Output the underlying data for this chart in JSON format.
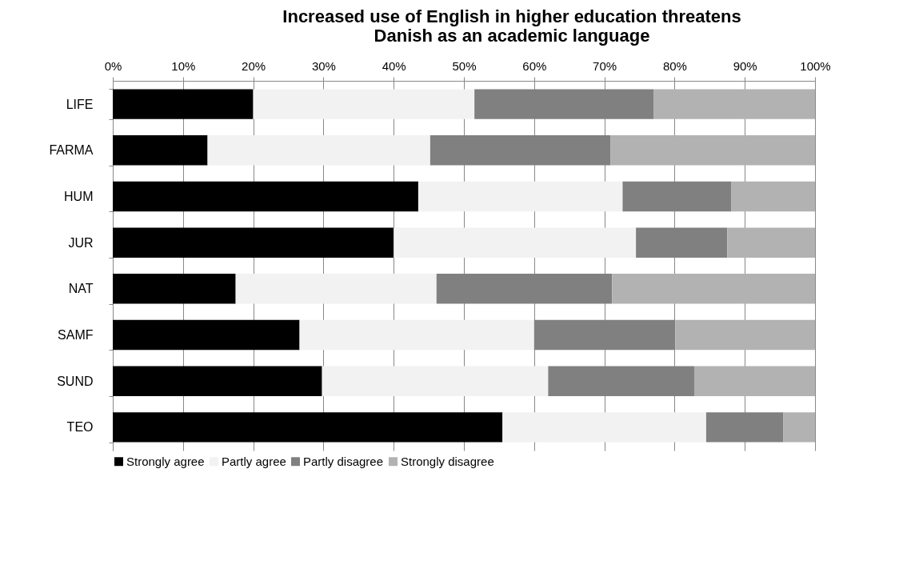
{
  "chart_data": {
    "type": "bar",
    "orientation": "horizontal",
    "stacked": true,
    "title": [
      "Increased use of English in higher education threatens",
      "Danish as an academic language"
    ],
    "categories": [
      "LIFE",
      "FARMA",
      "HUM",
      "JUR",
      "NAT",
      "SAMF",
      "SUND",
      "TEO"
    ],
    "series": [
      {
        "name": "Strongly agree",
        "color": "#000000",
        "values": [
          20,
          13.5,
          43.5,
          40,
          17.5,
          26.6,
          29.8,
          55.5
        ]
      },
      {
        "name": "Partly agree",
        "color": "#f2f2f2",
        "values": [
          31.5,
          31.7,
          29.1,
          34.5,
          28.6,
          33.4,
          32.2,
          29
        ]
      },
      {
        "name": "Partly disagree",
        "color": "#808080",
        "values": [
          25.5,
          25.7,
          15.5,
          13,
          25,
          20.1,
          20.8,
          11
        ]
      },
      {
        "name": "Strongly disagree",
        "color": "#b2b2b2",
        "values": [
          23,
          29.1,
          11.9,
          12.5,
          28.9,
          19.9,
          17.2,
          4.5
        ]
      }
    ],
    "xlim": [
      0,
      100
    ],
    "xticks": [
      {
        "value": 0,
        "label": "0%"
      },
      {
        "value": 10,
        "label": "10%"
      },
      {
        "value": 20,
        "label": "20%"
      },
      {
        "value": 30,
        "label": "30%"
      },
      {
        "value": 40,
        "label": "40%"
      },
      {
        "value": 50,
        "label": "50%"
      },
      {
        "value": 60,
        "label": "60%"
      },
      {
        "value": 70,
        "label": "70%"
      },
      {
        "value": 80,
        "label": "80%"
      },
      {
        "value": 90,
        "label": "90%"
      },
      {
        "value": 100,
        "label": "100%"
      }
    ],
    "grid": "x",
    "legend": "bottom left"
  }
}
